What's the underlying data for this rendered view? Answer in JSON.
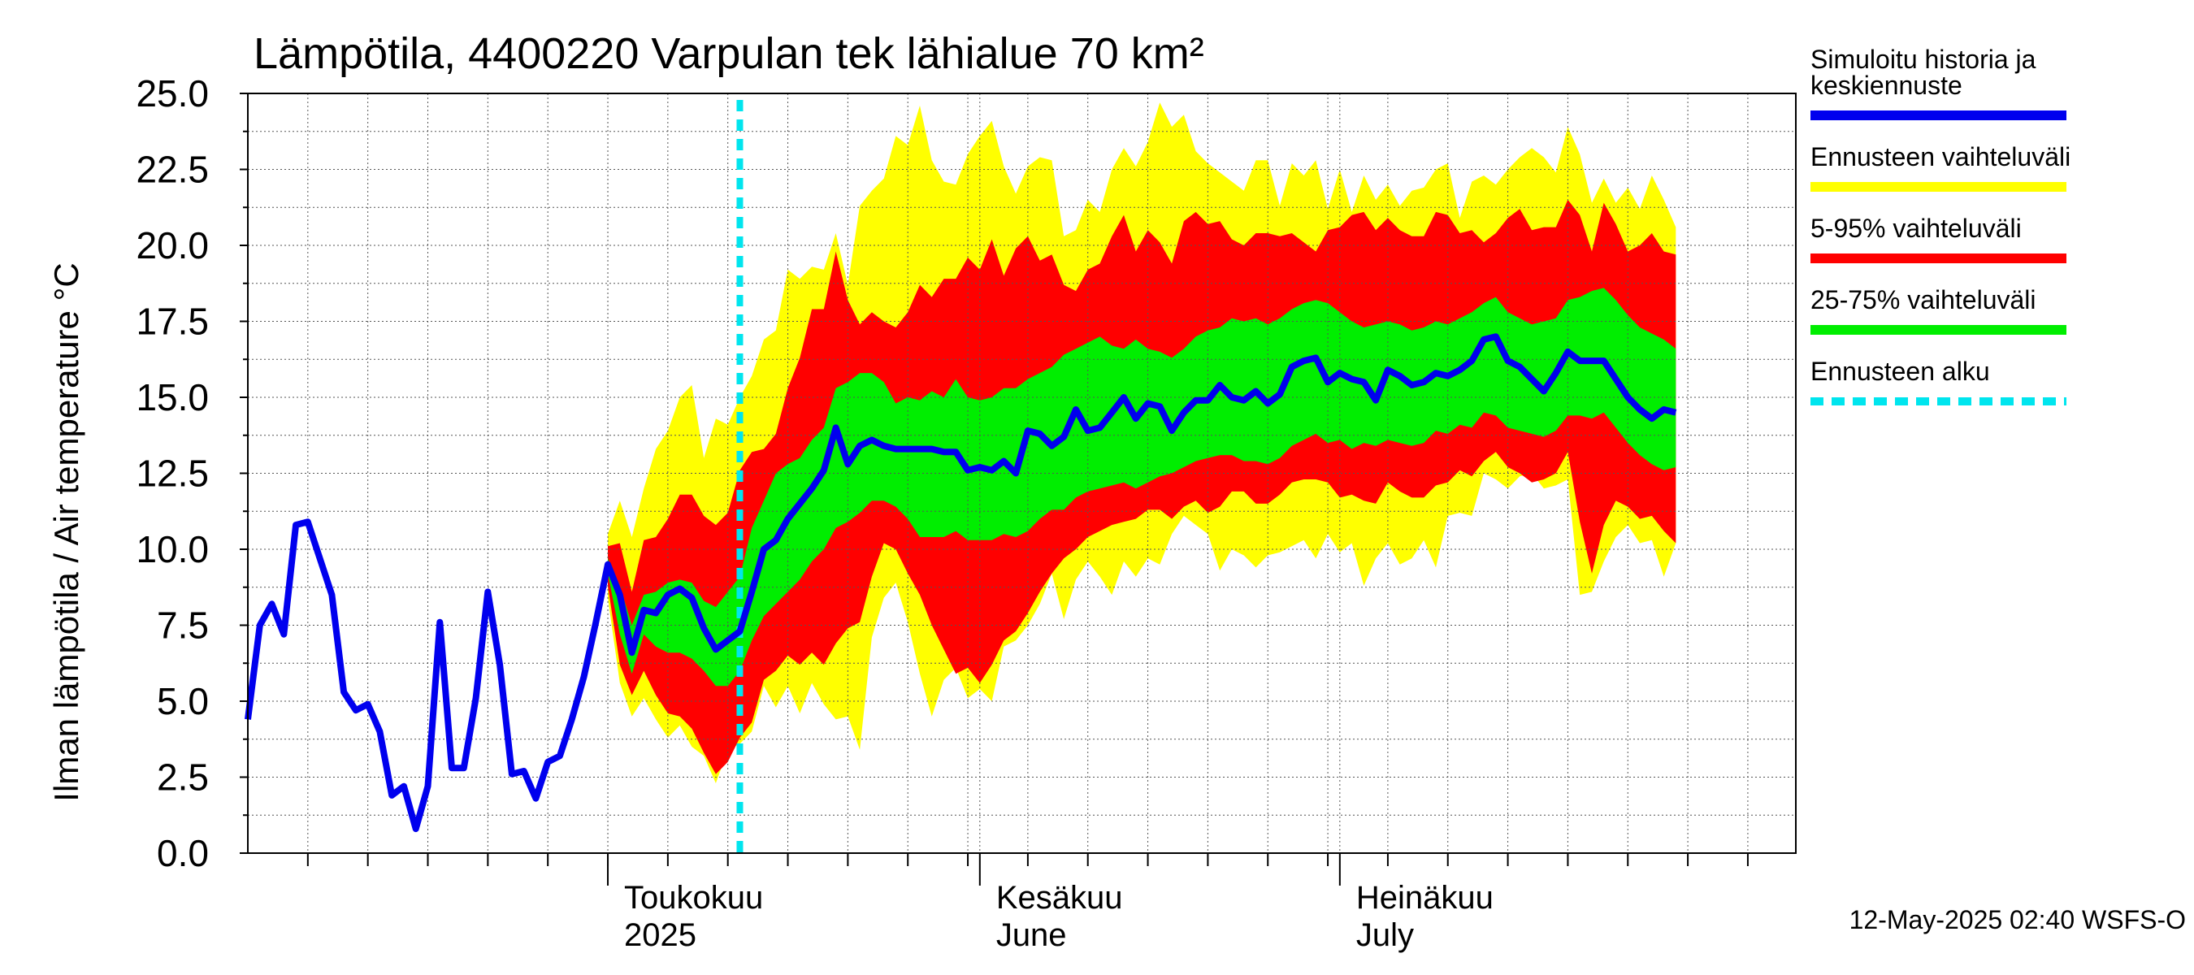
{
  "chart_data": {
    "type": "area",
    "title": "Lämpötila, 4400220 Varpulan tek lähialue 70 km²",
    "ylabel": "Ilman lämpötila / Air temperature   °C",
    "ylim": [
      0,
      25
    ],
    "yticks": [
      "0.0",
      "2.5",
      "5.0",
      "7.5",
      "10.0",
      "12.5",
      "15.0",
      "17.5",
      "20.0",
      "22.5",
      "25.0"
    ],
    "xlim": [
      "2025-04-01",
      "2025-08-08"
    ],
    "month_labels": [
      {
        "date": "2025-05-01",
        "line1": "Toukokuu",
        "line2": "2025"
      },
      {
        "date": "2025-06-01",
        "line1": "Kesäkuu",
        "line2": "June"
      },
      {
        "date": "2025-07-01",
        "line1": "Heinäkuu",
        "line2": "July"
      }
    ],
    "forecast_start": "2025-05-12",
    "timestamp": "12-May-2025 02:40 WSFS-O",
    "grid": true,
    "legend_position": "right",
    "legend": [
      {
        "label_lines": [
          "Simuloitu historia ja",
          "keskiennuste"
        ],
        "color": "#0000ee",
        "style": "solid"
      },
      {
        "label_lines": [
          "Ennusteen vaihteluväli"
        ],
        "color": "#ffff00",
        "style": "solid"
      },
      {
        "label_lines": [
          "5-95% vaihteluväli"
        ],
        "color": "#ff0000",
        "style": "solid"
      },
      {
        "label_lines": [
          "25-75% vaihteluväli"
        ],
        "color": "#00ee00",
        "style": "solid"
      },
      {
        "label_lines": [
          "Ennusteen alku"
        ],
        "color": "#00e5ee",
        "style": "dashed"
      }
    ],
    "history": {
      "start_date": "2025-04-01",
      "values": [
        4.4,
        7.5,
        8.2,
        7.2,
        10.8,
        10.9,
        9.7,
        8.5,
        5.3,
        4.7,
        4.9,
        4.0,
        1.9,
        2.2,
        0.8,
        2.2,
        7.6,
        2.8,
        2.8,
        5.1,
        8.6,
        6.2,
        2.6,
        2.7,
        1.8,
        3.0,
        3.2,
        4.4,
        5.8,
        7.6,
        9.5
      ]
    },
    "forecast": {
      "start_date": "2025-05-01",
      "median": [
        9.5,
        8.5,
        6.6,
        8.0,
        7.9,
        8.5,
        8.7,
        8.4,
        7.4,
        6.7,
        7.0,
        7.3,
        8.6,
        10.0,
        10.3,
        11.0,
        11.5,
        12.0,
        12.6,
        14.0,
        12.8,
        13.4,
        13.6,
        13.4,
        13.3,
        13.3,
        13.3,
        13.3,
        13.2,
        13.2,
        12.6,
        12.7,
        12.6,
        12.9,
        12.5,
        13.9,
        13.8,
        13.4,
        13.7,
        14.6,
        13.9,
        14.0,
        14.5,
        15.0,
        14.3,
        14.8,
        14.7,
        13.9,
        14.5,
        14.9,
        14.9,
        15.4,
        15.0,
        14.9,
        15.2,
        14.8,
        15.1,
        16.0,
        16.2,
        16.3,
        15.5,
        15.8,
        15.6,
        15.5,
        14.9,
        15.9,
        15.7,
        15.4,
        15.5,
        15.8,
        15.7,
        15.9,
        16.2,
        16.9,
        17.0,
        16.2,
        16.0,
        15.6,
        15.2,
        15.8,
        16.5,
        16.2,
        16.2,
        16.2,
        15.6,
        15.0,
        14.6,
        14.3,
        14.6,
        14.5
      ],
      "p25": [
        9.2,
        7.2,
        5.9,
        7.2,
        6.8,
        6.6,
        6.6,
        6.4,
        6.0,
        5.5,
        5.5,
        6.0,
        7.0,
        7.8,
        8.2,
        8.6,
        9.0,
        9.6,
        10.0,
        10.7,
        10.9,
        11.2,
        11.6,
        11.6,
        11.4,
        11.0,
        10.4,
        10.4,
        10.4,
        10.6,
        10.3,
        10.3,
        10.3,
        10.5,
        10.4,
        10.6,
        11.0,
        11.3,
        11.3,
        11.7,
        11.9,
        12.0,
        12.1,
        12.2,
        12.0,
        12.2,
        12.4,
        12.5,
        12.7,
        12.9,
        13.0,
        13.1,
        13.1,
        12.9,
        12.9,
        12.8,
        13.0,
        13.4,
        13.6,
        13.8,
        13.5,
        13.6,
        13.3,
        13.5,
        13.4,
        13.6,
        13.5,
        13.4,
        13.5,
        13.9,
        13.8,
        14.1,
        14.0,
        14.5,
        14.4,
        14.0,
        13.9,
        13.8,
        13.7,
        13.9,
        14.4,
        14.4,
        14.3,
        14.5,
        14.0,
        13.5,
        13.1,
        12.8,
        12.6,
        12.7
      ],
      "p75": [
        9.7,
        8.8,
        7.5,
        8.5,
        8.6,
        8.9,
        9.0,
        8.9,
        8.3,
        8.1,
        8.6,
        9.1,
        10.7,
        11.6,
        12.5,
        12.8,
        13.0,
        13.6,
        14.0,
        15.3,
        15.5,
        15.8,
        15.8,
        15.5,
        14.8,
        15.0,
        14.9,
        15.2,
        15.0,
        15.6,
        15.0,
        14.9,
        15.0,
        15.3,
        15.3,
        15.6,
        15.8,
        16.0,
        16.4,
        16.6,
        16.8,
        17.0,
        16.7,
        16.6,
        16.9,
        16.6,
        16.5,
        16.3,
        16.6,
        17.0,
        17.2,
        17.3,
        17.6,
        17.5,
        17.6,
        17.4,
        17.6,
        17.9,
        18.1,
        18.2,
        18.1,
        17.8,
        17.5,
        17.3,
        17.4,
        17.5,
        17.4,
        17.2,
        17.3,
        17.5,
        17.4,
        17.6,
        17.8,
        18.1,
        18.3,
        17.8,
        17.6,
        17.4,
        17.5,
        17.6,
        18.2,
        18.3,
        18.5,
        18.6,
        18.2,
        17.7,
        17.3,
        17.1,
        16.9,
        16.6
      ],
      "p5": [
        8.8,
        6.2,
        5.2,
        6.0,
        5.2,
        4.6,
        4.5,
        4.1,
        3.3,
        2.6,
        3.0,
        3.8,
        4.3,
        5.7,
        6.0,
        6.5,
        6.2,
        6.6,
        6.2,
        6.9,
        7.4,
        7.6,
        9.1,
        10.2,
        10.0,
        9.2,
        8.5,
        7.5,
        6.7,
        5.9,
        6.1,
        5.6,
        6.2,
        7.0,
        7.3,
        7.9,
        8.6,
        9.2,
        9.7,
        10.0,
        10.4,
        10.6,
        10.8,
        10.9,
        11.0,
        11.3,
        11.3,
        11.0,
        11.4,
        11.6,
        11.2,
        11.4,
        11.9,
        11.9,
        11.5,
        11.5,
        11.8,
        12.2,
        12.3,
        12.3,
        12.2,
        11.7,
        11.8,
        11.6,
        11.5,
        12.2,
        11.9,
        11.7,
        11.7,
        12.1,
        12.2,
        12.6,
        12.4,
        12.9,
        13.2,
        12.7,
        12.5,
        12.2,
        12.3,
        12.5,
        13.2,
        10.9,
        9.2,
        10.8,
        11.6,
        11.4,
        11.0,
        11.1,
        10.6,
        10.2
      ],
      "p95": [
        10.1,
        10.2,
        8.6,
        10.3,
        10.4,
        11.0,
        11.8,
        11.8,
        11.1,
        10.8,
        11.2,
        12.6,
        13.2,
        13.3,
        13.8,
        15.3,
        16.3,
        17.9,
        17.9,
        19.8,
        18.2,
        17.4,
        17.8,
        17.5,
        17.3,
        17.8,
        18.7,
        18.3,
        18.9,
        18.9,
        19.6,
        19.2,
        20.2,
        19.0,
        19.9,
        20.3,
        19.5,
        19.7,
        18.7,
        18.5,
        19.2,
        19.4,
        20.3,
        21.0,
        19.8,
        20.5,
        20.1,
        19.4,
        20.8,
        21.1,
        20.7,
        20.8,
        20.2,
        20.0,
        20.4,
        20.4,
        20.3,
        20.4,
        20.1,
        19.8,
        20.5,
        20.6,
        21.0,
        21.1,
        20.5,
        20.9,
        20.5,
        20.3,
        20.3,
        21.1,
        21.0,
        20.4,
        20.5,
        20.1,
        20.4,
        20.9,
        21.2,
        20.5,
        20.6,
        20.6,
        21.5,
        21.0,
        19.8,
        21.4,
        20.7,
        19.8,
        20.0,
        20.4,
        19.8,
        19.7
      ],
      "min": [
        8.4,
        5.6,
        4.5,
        5.1,
        4.4,
        3.8,
        4.2,
        3.5,
        3.2,
        2.3,
        3.4,
        3.6,
        4.0,
        5.5,
        4.8,
        5.5,
        4.6,
        5.6,
        4.9,
        4.4,
        4.5,
        3.4,
        7.1,
        8.4,
        8.9,
        7.6,
        5.9,
        4.5,
        5.7,
        6.1,
        5.1,
        5.4,
        5.0,
        6.8,
        7.0,
        7.5,
        8.2,
        9.2,
        7.7,
        9.0,
        9.6,
        9.1,
        8.5,
        9.6,
        9.1,
        9.7,
        9.5,
        10.5,
        11.1,
        10.8,
        10.5,
        9.3,
        10.0,
        9.8,
        9.4,
        9.8,
        9.9,
        10.1,
        10.3,
        9.7,
        10.5,
        9.9,
        10.2,
        8.8,
        9.7,
        10.2,
        9.5,
        9.7,
        10.3,
        9.4,
        11.1,
        11.2,
        11.1,
        12.5,
        12.3,
        12.0,
        12.4,
        12.5,
        12.0,
        12.1,
        12.3,
        8.5,
        8.6,
        9.6,
        10.4,
        10.8,
        10.2,
        10.3,
        9.1,
        10.2
      ],
      "max": [
        10.5,
        11.6,
        10.4,
        12.0,
        13.3,
        13.9,
        15.0,
        15.4,
        13.0,
        14.3,
        14.1,
        15.0,
        15.7,
        16.9,
        17.2,
        19.2,
        18.9,
        19.3,
        19.2,
        20.4,
        18.7,
        21.3,
        21.8,
        22.2,
        23.6,
        23.3,
        24.6,
        22.8,
        22.1,
        22.0,
        23.0,
        23.6,
        24.1,
        22.6,
        21.7,
        22.6,
        22.9,
        22.8,
        20.3,
        20.5,
        21.5,
        21.1,
        22.5,
        23.2,
        22.6,
        23.4,
        24.7,
        23.9,
        24.3,
        23.1,
        22.7,
        22.4,
        22.1,
        21.8,
        22.8,
        22.8,
        21.3,
        22.7,
        22.3,
        22.8,
        21.2,
        22.5,
        21.1,
        22.3,
        21.5,
        22.0,
        21.3,
        21.8,
        21.9,
        22.5,
        22.7,
        20.9,
        22.1,
        22.3,
        22.0,
        22.5,
        22.9,
        23.2,
        22.9,
        22.4,
        23.9,
        23.0,
        21.4,
        22.2,
        21.4,
        21.9,
        21.2,
        22.3,
        21.5,
        20.6
      ]
    }
  }
}
